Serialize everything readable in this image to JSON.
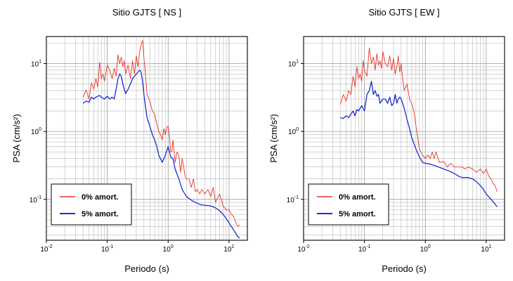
{
  "chart_data": [
    {
      "type": "line",
      "title": "Sitio GJTS [ NS ]",
      "xlabel": "Periodo (s)",
      "ylabel": "PSA (cm/s²)",
      "x_scale": "log",
      "y_scale": "log",
      "xlim": [
        0.01,
        20
      ],
      "ylim": [
        0.025,
        25
      ],
      "grid": true,
      "legend_position": "bottom-left",
      "x_ticks": [
        {
          "value": 0.01,
          "mant": "10",
          "exp": "-2"
        },
        {
          "value": 0.1,
          "mant": "10",
          "exp": "-1"
        },
        {
          "value": 1,
          "mant": "10",
          "exp": "0"
        },
        {
          "value": 10,
          "mant": "10",
          "exp": "1"
        }
      ],
      "y_ticks": [
        {
          "value": 0.1,
          "mant": "10",
          "exp": "-1"
        },
        {
          "value": 1,
          "mant": "10",
          "exp": "0"
        },
        {
          "value": 10,
          "mant": "10",
          "exp": "1"
        }
      ],
      "series": [
        {
          "name": "0% amort.",
          "color": "#e8332a",
          "x": [
            0.04,
            0.045,
            0.05,
            0.055,
            0.06,
            0.065,
            0.07,
            0.075,
            0.08,
            0.085,
            0.09,
            0.1,
            0.11,
            0.12,
            0.13,
            0.14,
            0.15,
            0.16,
            0.17,
            0.18,
            0.19,
            0.2,
            0.22,
            0.24,
            0.26,
            0.28,
            0.3,
            0.32,
            0.34,
            0.36,
            0.38,
            0.4,
            0.42,
            0.45,
            0.5,
            0.55,
            0.6,
            0.65,
            0.7,
            0.75,
            0.8,
            0.85,
            0.9,
            0.95,
            1.0,
            1.05,
            1.1,
            1.15,
            1.2,
            1.3,
            1.4,
            1.5,
            1.6,
            1.7,
            1.8,
            1.9,
            2.0,
            2.2,
            2.4,
            2.6,
            2.8,
            3.0,
            3.3,
            3.6,
            4.0,
            4.5,
            5.0,
            5.5,
            6.0,
            7.0,
            8.0,
            9.0,
            10.0,
            11.0,
            12.0,
            13.0,
            14.0,
            15.0
          ],
          "y": [
            3.2,
            4.1,
            3.0,
            5.2,
            4.2,
            6.0,
            4.5,
            10.5,
            6.0,
            7.0,
            5.5,
            9.5,
            8.0,
            6.0,
            8.5,
            6.5,
            13.5,
            10.0,
            12.5,
            9.0,
            11.0,
            7.0,
            9.5,
            6.0,
            11.0,
            7.0,
            13.0,
            9.0,
            15.0,
            19.0,
            22.0,
            12.0,
            8.0,
            3.5,
            2.8,
            2.0,
            1.8,
            1.3,
            1.0,
            0.9,
            0.75,
            1.1,
            0.9,
            1.15,
            1.2,
            0.85,
            0.5,
            0.5,
            0.75,
            0.35,
            0.5,
            0.45,
            0.25,
            0.4,
            0.3,
            0.22,
            0.2,
            0.2,
            0.15,
            0.2,
            0.13,
            0.14,
            0.12,
            0.14,
            0.12,
            0.14,
            0.11,
            0.15,
            0.09,
            0.12,
            0.08,
            0.07,
            0.07,
            0.06,
            0.055,
            0.045,
            0.04,
            0.042
          ]
        },
        {
          "name": "5% amort.",
          "color": "#1a2ecc",
          "x": [
            0.04,
            0.045,
            0.05,
            0.055,
            0.06,
            0.065,
            0.07,
            0.075,
            0.08,
            0.09,
            0.1,
            0.11,
            0.12,
            0.13,
            0.14,
            0.15,
            0.16,
            0.17,
            0.18,
            0.2,
            0.22,
            0.24,
            0.26,
            0.28,
            0.3,
            0.32,
            0.34,
            0.36,
            0.38,
            0.4,
            0.42,
            0.45,
            0.5,
            0.55,
            0.6,
            0.65,
            0.7,
            0.8,
            0.9,
            1.0,
            1.1,
            1.2,
            1.3,
            1.5,
            1.7,
            2.0,
            2.5,
            3.0,
            3.5,
            4.0,
            5.0,
            6.0,
            7.0,
            8.0,
            9.0,
            10.0,
            12.0,
            14.0,
            15.0
          ],
          "y": [
            2.6,
            2.8,
            2.7,
            3.2,
            3.0,
            3.2,
            3.3,
            3.4,
            3.2,
            3.0,
            3.3,
            3.0,
            3.2,
            3.0,
            4.2,
            6.0,
            7.0,
            6.5,
            5.0,
            3.6,
            4.2,
            5.0,
            6.0,
            6.5,
            7.0,
            7.5,
            8.0,
            7.5,
            5.5,
            3.5,
            2.5,
            1.6,
            1.2,
            0.9,
            0.75,
            0.6,
            0.45,
            0.35,
            0.45,
            0.6,
            0.42,
            0.4,
            0.28,
            0.2,
            0.14,
            0.11,
            0.095,
            0.088,
            0.083,
            0.082,
            0.08,
            0.075,
            0.068,
            0.06,
            0.052,
            0.045,
            0.035,
            0.028,
            0.027
          ]
        }
      ]
    },
    {
      "type": "line",
      "title": "Sitio GJTS [ EW ]",
      "xlabel": "Periodo (s)",
      "ylabel": "PSA (cm/s²)",
      "x_scale": "log",
      "y_scale": "log",
      "xlim": [
        0.01,
        20
      ],
      "ylim": [
        0.025,
        25
      ],
      "grid": true,
      "legend_position": "bottom-left",
      "x_ticks": [
        {
          "value": 0.01,
          "mant": "10",
          "exp": "-2"
        },
        {
          "value": 0.1,
          "mant": "10",
          "exp": "-1"
        },
        {
          "value": 1,
          "mant": "10",
          "exp": "0"
        },
        {
          "value": 10,
          "mant": "10",
          "exp": "1"
        }
      ],
      "y_ticks": [
        {
          "value": 0.1,
          "mant": "10",
          "exp": "-1"
        },
        {
          "value": 1,
          "mant": "10",
          "exp": "0"
        },
        {
          "value": 10,
          "mant": "10",
          "exp": "1"
        }
      ],
      "series": [
        {
          "name": "0% amort.",
          "color": "#e8332a",
          "x": [
            0.04,
            0.045,
            0.05,
            0.055,
            0.06,
            0.065,
            0.07,
            0.075,
            0.08,
            0.085,
            0.09,
            0.095,
            0.1,
            0.11,
            0.12,
            0.13,
            0.14,
            0.15,
            0.16,
            0.17,
            0.18,
            0.19,
            0.2,
            0.22,
            0.24,
            0.26,
            0.28,
            0.3,
            0.32,
            0.34,
            0.36,
            0.38,
            0.4,
            0.42,
            0.45,
            0.5,
            0.55,
            0.6,
            0.65,
            0.7,
            0.75,
            0.8,
            0.9,
            1.0,
            1.1,
            1.2,
            1.3,
            1.4,
            1.5,
            1.7,
            2.0,
            2.3,
            2.6,
            3.0,
            3.5,
            4.0,
            4.5,
            5.0,
            6.0,
            7.0,
            8.0,
            9.0,
            10.0,
            11.0,
            12.0,
            13.0,
            14.0,
            15.0
          ],
          "y": [
            2.5,
            3.5,
            2.8,
            4.0,
            3.5,
            6.5,
            4.5,
            9.0,
            6.0,
            7.0,
            5.5,
            11.0,
            8.0,
            6.5,
            17.0,
            10.0,
            12.5,
            8.0,
            14.0,
            9.5,
            11.0,
            8.5,
            15.0,
            10.0,
            9.0,
            13.0,
            8.0,
            12.0,
            7.0,
            9.0,
            13.0,
            7.5,
            10.0,
            6.5,
            4.0,
            5.0,
            3.0,
            2.5,
            2.0,
            1.2,
            0.8,
            0.55,
            0.45,
            0.4,
            0.45,
            0.4,
            0.5,
            0.4,
            0.5,
            0.35,
            0.36,
            0.3,
            0.34,
            0.3,
            0.3,
            0.3,
            0.28,
            0.3,
            0.28,
            0.25,
            0.28,
            0.24,
            0.28,
            0.22,
            0.2,
            0.17,
            0.16,
            0.13
          ]
        },
        {
          "name": "5% amort.",
          "color": "#1a2ecc",
          "x": [
            0.04,
            0.045,
            0.05,
            0.055,
            0.06,
            0.065,
            0.07,
            0.075,
            0.08,
            0.09,
            0.1,
            0.11,
            0.12,
            0.13,
            0.14,
            0.15,
            0.16,
            0.17,
            0.18,
            0.2,
            0.22,
            0.24,
            0.26,
            0.28,
            0.3,
            0.32,
            0.34,
            0.36,
            0.38,
            0.4,
            0.45,
            0.5,
            0.55,
            0.6,
            0.7,
            0.8,
            0.9,
            1.0,
            1.2,
            1.5,
            2.0,
            2.5,
            3.0,
            3.5,
            4.0,
            5.0,
            6.0,
            7.0,
            8.0,
            9.0,
            10.0,
            12.0,
            14.0,
            15.0
          ],
          "y": [
            1.6,
            1.55,
            1.7,
            1.6,
            1.8,
            2.0,
            1.7,
            2.1,
            2.0,
            2.4,
            2.0,
            3.5,
            4.0,
            5.5,
            3.5,
            4.0,
            3.3,
            3.5,
            2.6,
            3.0,
            3.0,
            2.6,
            3.2,
            2.4,
            2.6,
            3.5,
            2.6,
            3.0,
            3.2,
            3.0,
            2.2,
            1.5,
            1.1,
            0.8,
            0.55,
            0.42,
            0.35,
            0.34,
            0.33,
            0.31,
            0.28,
            0.26,
            0.24,
            0.22,
            0.21,
            0.21,
            0.2,
            0.18,
            0.16,
            0.14,
            0.12,
            0.1,
            0.085,
            0.078
          ]
        }
      ]
    }
  ]
}
